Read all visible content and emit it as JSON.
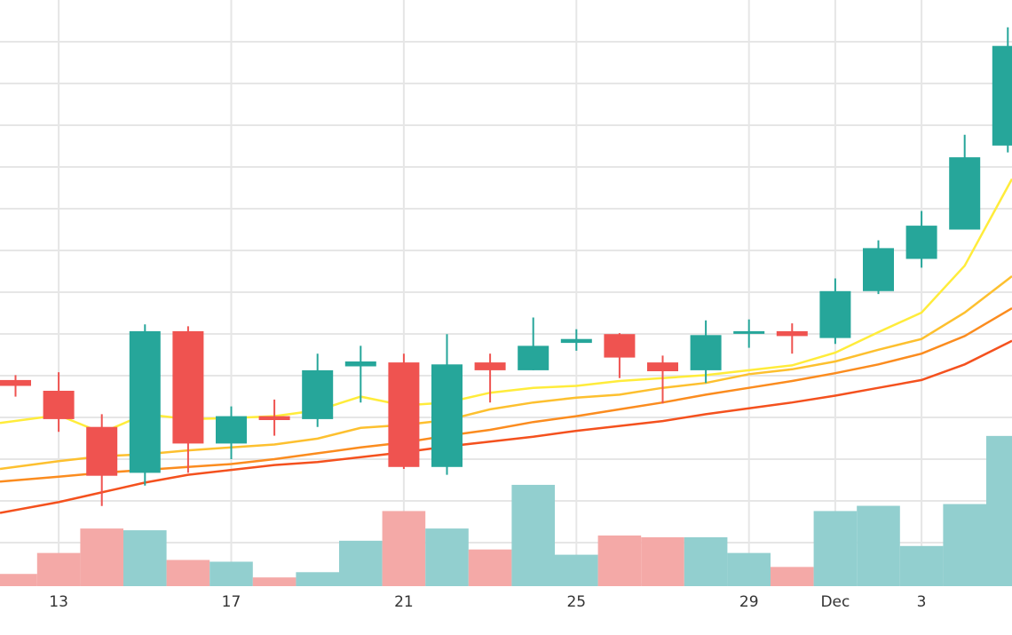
{
  "chart_data": {
    "type": "candlestick",
    "title": "",
    "xlabel": "",
    "ylabel": "",
    "grid": true,
    "x_tick_labels": [
      {
        "date": "Nov 13",
        "label": "13"
      },
      {
        "date": "Nov 17",
        "label": "17"
      },
      {
        "date": "Nov 21",
        "label": "21"
      },
      {
        "date": "Nov 25",
        "label": "25"
      },
      {
        "date": "Nov 29",
        "label": "29"
      },
      {
        "date": "Dec 1",
        "label": "Dec"
      },
      {
        "date": "Dec 3",
        "label": "3"
      }
    ],
    "candles": [
      {
        "date": "Nov 12",
        "open": 441.1,
        "high": 441.6,
        "low": 439.4,
        "close": 440.5
      },
      {
        "date": "Nov 13",
        "open": 440.0,
        "high": 441.9,
        "low": 435.8,
        "close": 437.1
      },
      {
        "date": "Nov 14",
        "open": 436.3,
        "high": 437.6,
        "low": 428.2,
        "close": 431.3
      },
      {
        "date": "Nov 15",
        "open": 431.6,
        "high": 446.8,
        "low": 430.3,
        "close": 446.1
      },
      {
        "date": "Nov 16",
        "open": 446.1,
        "high": 446.6,
        "low": 431.6,
        "close": 434.6
      },
      {
        "date": "Nov 17",
        "open": 434.6,
        "high": 438.4,
        "low": 433.0,
        "close": 437.4
      },
      {
        "date": "Nov 18",
        "open": 437.4,
        "high": 439.1,
        "low": 435.4,
        "close": 437.0
      },
      {
        "date": "Nov 19",
        "open": 437.1,
        "high": 443.8,
        "low": 436.3,
        "close": 442.1
      },
      {
        "date": "Nov 20",
        "open": 442.5,
        "high": 444.6,
        "low": 438.8,
        "close": 443.0
      },
      {
        "date": "Nov 21",
        "open": 442.9,
        "high": 443.8,
        "low": 432.0,
        "close": 432.2
      },
      {
        "date": "Nov 22",
        "open": 432.2,
        "high": 445.8,
        "low": 431.4,
        "close": 442.7
      },
      {
        "date": "Nov 23",
        "open": 442.9,
        "high": 443.8,
        "low": 438.8,
        "close": 442.1
      },
      {
        "date": "Nov 24",
        "open": 442.1,
        "high": 447.5,
        "low": 442.1,
        "close": 444.6
      },
      {
        "date": "Nov 25",
        "open": 444.9,
        "high": 446.3,
        "low": 444.1,
        "close": 445.3
      },
      {
        "date": "Nov 26",
        "open": 445.8,
        "high": 445.9,
        "low": 441.3,
        "close": 443.4
      },
      {
        "date": "Nov 27",
        "open": 442.9,
        "high": 443.6,
        "low": 438.7,
        "close": 442.0
      },
      {
        "date": "Nov 28",
        "open": 442.1,
        "high": 447.2,
        "low": 440.8,
        "close": 445.7
      },
      {
        "date": "Nov 29",
        "open": 445.9,
        "high": 447.3,
        "low": 444.4,
        "close": 446.1
      },
      {
        "date": "Nov 30",
        "open": 446.1,
        "high": 446.9,
        "low": 443.8,
        "close": 445.6
      },
      {
        "date": "Dec 1",
        "open": 445.4,
        "high": 451.5,
        "low": 444.8,
        "close": 450.2
      },
      {
        "date": "Dec 2",
        "open": 450.2,
        "high": 455.4,
        "low": 449.9,
        "close": 454.6
      },
      {
        "date": "Dec 3",
        "open": 453.5,
        "high": 458.4,
        "low": 452.6,
        "close": 456.9
      },
      {
        "date": "Dec 4",
        "open": 456.5,
        "high": 466.2,
        "low": 456.5,
        "close": 463.9
      },
      {
        "date": "Dec 5",
        "open": 465.1,
        "high": 477.2,
        "low": 464.4,
        "close": 475.3
      }
    ],
    "volume": {
      "up_color": "#92cfcf",
      "down_color": "#f4a9a7",
      "values": [
        {
          "date": "Nov 12",
          "value": 7,
          "direction": "down"
        },
        {
          "date": "Nov 13",
          "value": 19,
          "direction": "down"
        },
        {
          "date": "Nov 14",
          "value": 33,
          "direction": "down"
        },
        {
          "date": "Nov 15",
          "value": 32,
          "direction": "up"
        },
        {
          "date": "Nov 16",
          "value": 15,
          "direction": "down"
        },
        {
          "date": "Nov 17",
          "value": 14,
          "direction": "up"
        },
        {
          "date": "Nov 18",
          "value": 5,
          "direction": "down"
        },
        {
          "date": "Nov 19",
          "value": 8,
          "direction": "up"
        },
        {
          "date": "Nov 20",
          "value": 26,
          "direction": "up"
        },
        {
          "date": "Nov 21",
          "value": 43,
          "direction": "down"
        },
        {
          "date": "Nov 22",
          "value": 33,
          "direction": "up"
        },
        {
          "date": "Nov 23",
          "value": 21,
          "direction": "down"
        },
        {
          "date": "Nov 24",
          "value": 58,
          "direction": "up"
        },
        {
          "date": "Nov 25",
          "value": 18,
          "direction": "up"
        },
        {
          "date": "Nov 26",
          "value": 29,
          "direction": "down"
        },
        {
          "date": "Nov 27",
          "value": 28,
          "direction": "down"
        },
        {
          "date": "Nov 28",
          "value": 28,
          "direction": "up"
        },
        {
          "date": "Nov 29",
          "value": 19,
          "direction": "up"
        },
        {
          "date": "Nov 30",
          "value": 11,
          "direction": "down"
        },
        {
          "date": "Dec 1",
          "value": 43,
          "direction": "up"
        },
        {
          "date": "Dec 2",
          "value": 46,
          "direction": "up"
        },
        {
          "date": "Dec 3",
          "value": 23,
          "direction": "up"
        },
        {
          "date": "Dec 4",
          "value": 47,
          "direction": "up"
        },
        {
          "date": "Dec 5",
          "value": 86,
          "direction": "up"
        }
      ]
    },
    "moving_averages": [
      {
        "color": "#ffec3b",
        "values": [
          436.7,
          437.5,
          435.7,
          437.6,
          437.1,
          437.2,
          437.4,
          438.0,
          439.4,
          438.5,
          438.8,
          439.8,
          440.3,
          440.5,
          441.0,
          441.3,
          441.6,
          442.1,
          442.6,
          443.9,
          446.0,
          448.0,
          452.8,
          460.9
        ]
      },
      {
        "color": "#fdc02f",
        "values": [
          432.0,
          432.8,
          433.3,
          433.5,
          433.9,
          434.2,
          434.5,
          435.1,
          436.2,
          436.5,
          437.0,
          438.1,
          438.8,
          439.3,
          439.6,
          440.3,
          440.8,
          441.7,
          442.2,
          443.0,
          444.2,
          445.3,
          448.0,
          451.4
        ]
      },
      {
        "color": "#fb8c1f",
        "values": [
          430.7,
          431.2,
          431.6,
          431.9,
          432.2,
          432.5,
          433.0,
          433.6,
          434.2,
          434.7,
          435.4,
          436.0,
          436.8,
          437.4,
          438.1,
          438.8,
          439.6,
          440.3,
          441.0,
          441.8,
          442.7,
          443.8,
          445.6,
          448.2
        ]
      },
      {
        "color": "#f4511e",
        "values": [
          427.5,
          428.6,
          429.6,
          430.6,
          431.4,
          431.9,
          432.4,
          432.7,
          433.2,
          433.7,
          434.3,
          434.8,
          435.3,
          435.9,
          436.4,
          436.9,
          437.6,
          438.2,
          438.8,
          439.5,
          440.3,
          441.1,
          442.7,
          444.9
        ]
      }
    ],
    "candle_colors": {
      "up": "#26a69a",
      "down": "#ef5350"
    },
    "grid_color": "#e6e6e6"
  }
}
